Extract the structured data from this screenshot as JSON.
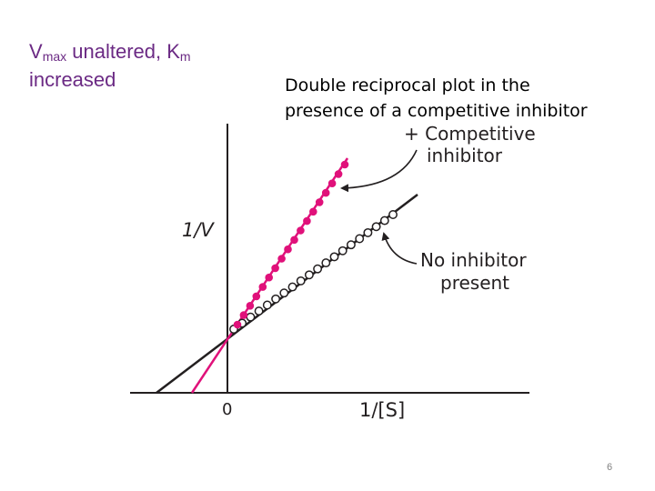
{
  "subtitle": {
    "v": "V",
    "v_sub": "max",
    "mid": " unaltered, K",
    "k_sub": "m",
    "line2": "increased"
  },
  "heading": {
    "line1": "Double reciprocal plot in the",
    "line2": "presence of a competitive inhibitor"
  },
  "diagram": {
    "y_axis_label": "1/V",
    "x_axis_label": "1/[S]",
    "origin_label": "0",
    "inhibitor_label_line1": "+ Competitive",
    "inhibitor_label_line2": "inhibitor",
    "no_inhibitor_label_line1": "No inhibitor",
    "no_inhibitor_label_line2": "present",
    "inhibitor_color": "#e0117a",
    "no_inhibitor_color": "#231f20"
  },
  "slide_number": "6"
}
